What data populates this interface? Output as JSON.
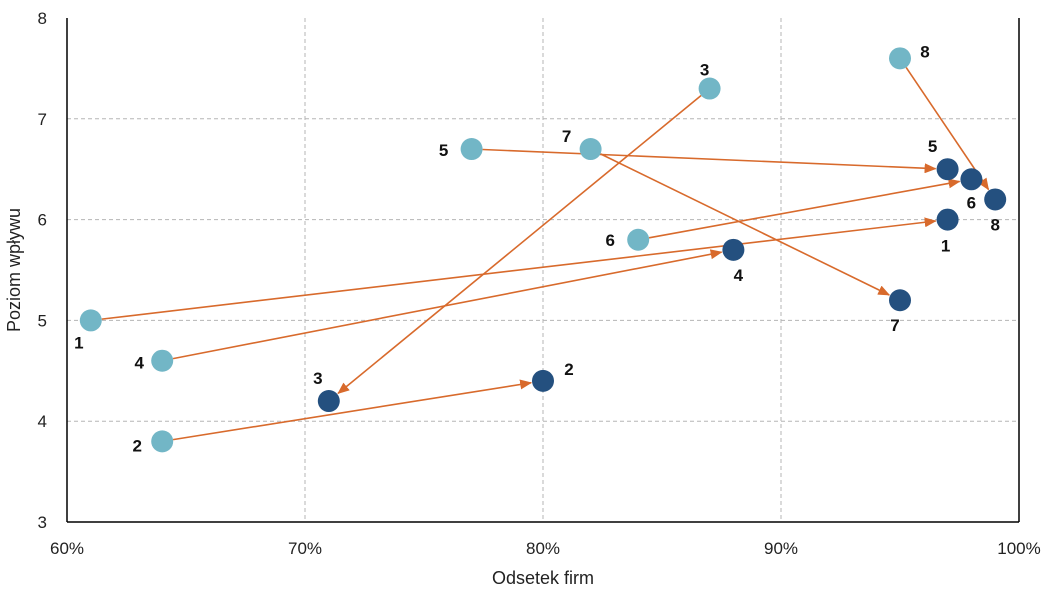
{
  "chart_data": {
    "type": "scatter",
    "title": "",
    "xlabel": "Odsetek firm",
    "ylabel": "Poziom wpływu",
    "xlim": [
      0.6,
      1.0
    ],
    "ylim": [
      3,
      8
    ],
    "x_ticks": [
      0.6,
      0.7,
      0.8,
      0.9,
      1.0
    ],
    "x_tick_labels": [
      "60%",
      "70%",
      "80%",
      "90%",
      "100%"
    ],
    "y_ticks": [
      3,
      4,
      5,
      6,
      7,
      8
    ],
    "y_tick_labels": [
      "3",
      "4",
      "5",
      "6",
      "7",
      "8"
    ],
    "grid": true,
    "colors": {
      "start": "#72b6c6",
      "end": "#24507f",
      "arrow": "#d86a2c",
      "grid": "#b5b5b5",
      "axis": "#000000"
    },
    "series": [
      {
        "points": [
          {
            "label": "1",
            "x": 0.61,
            "y": 5.0
          },
          {
            "label": "2",
            "x": 0.64,
            "y": 3.8
          },
          {
            "label": "3",
            "x": 0.87,
            "y": 7.3
          },
          {
            "label": "4",
            "x": 0.64,
            "y": 4.6
          },
          {
            "label": "5",
            "x": 0.77,
            "y": 6.7
          },
          {
            "label": "6",
            "x": 0.84,
            "y": 5.8
          },
          {
            "label": "7",
            "x": 0.82,
            "y": 6.7
          },
          {
            "label": "8",
            "x": 0.95,
            "y": 7.6
          }
        ]
      },
      {
        "points": [
          {
            "label": "1",
            "x": 0.97,
            "y": 6.0
          },
          {
            "label": "2",
            "x": 0.8,
            "y": 4.4
          },
          {
            "label": "3",
            "x": 0.71,
            "y": 4.2
          },
          {
            "label": "4",
            "x": 0.88,
            "y": 5.7
          },
          {
            "label": "5",
            "x": 0.97,
            "y": 6.5
          },
          {
            "label": "6",
            "x": 0.98,
            "y": 6.4
          },
          {
            "label": "7",
            "x": 0.95,
            "y": 5.2
          },
          {
            "label": "8",
            "x": 0.99,
            "y": 6.2
          }
        ]
      }
    ]
  }
}
